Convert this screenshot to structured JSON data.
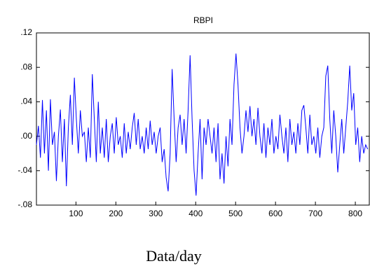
{
  "chart_data": {
    "type": "line",
    "title": "RBPI",
    "x_label": "Data/day",
    "x": [
      1,
      6,
      11,
      16,
      21,
      26,
      31,
      36,
      41,
      46,
      51,
      56,
      61,
      66,
      71,
      76,
      81,
      86,
      91,
      96,
      101,
      106,
      111,
      116,
      121,
      126,
      131,
      136,
      141,
      146,
      151,
      156,
      161,
      166,
      171,
      176,
      181,
      186,
      191,
      196,
      201,
      206,
      211,
      216,
      221,
      226,
      231,
      236,
      241,
      246,
      251,
      256,
      261,
      266,
      271,
      276,
      281,
      286,
      291,
      296,
      301,
      306,
      311,
      316,
      321,
      326,
      331,
      336,
      341,
      346,
      351,
      356,
      361,
      366,
      371,
      376,
      381,
      386,
      391,
      396,
      401,
      406,
      411,
      416,
      421,
      426,
      431,
      436,
      441,
      446,
      451,
      456,
      461,
      466,
      471,
      476,
      481,
      486,
      491,
      496,
      501,
      506,
      511,
      516,
      521,
      526,
      531,
      536,
      541,
      546,
      551,
      556,
      561,
      566,
      571,
      576,
      581,
      586,
      591,
      596,
      601,
      606,
      611,
      616,
      621,
      626,
      631,
      636,
      641,
      646,
      651,
      656,
      661,
      666,
      671,
      676,
      681,
      686,
      691,
      696,
      701,
      706,
      711,
      716,
      721,
      726,
      731,
      736,
      741,
      746,
      751,
      756,
      761,
      766,
      771,
      776,
      781,
      786,
      791,
      796,
      801,
      806,
      811,
      816,
      821,
      826,
      831
    ],
    "series": [
      {
        "name": "RBPI",
        "color": "#0000ff",
        "values": [
          -0.01,
          0.012,
          -0.025,
          0.042,
          -0.02,
          0.03,
          -0.04,
          0.043,
          -0.01,
          0.005,
          -0.052,
          0.0,
          0.031,
          -0.03,
          0.02,
          -0.058,
          0.01,
          0.048,
          -0.01,
          0.068,
          0.02,
          -0.02,
          0.03,
          0.0,
          0.005,
          -0.03,
          0.01,
          -0.025,
          0.072,
          0.02,
          -0.03,
          0.04,
          -0.02,
          0.01,
          -0.025,
          0.02,
          -0.03,
          0.0,
          0.015,
          -0.02,
          0.022,
          -0.01,
          0.0,
          -0.025,
          0.015,
          -0.02,
          0.005,
          -0.015,
          0.01,
          0.027,
          -0.01,
          0.02,
          -0.015,
          0.0,
          -0.02,
          0.01,
          -0.015,
          0.018,
          -0.01,
          0.005,
          -0.02,
          0.0,
          0.01,
          -0.03,
          -0.015,
          -0.048,
          -0.064,
          -0.02,
          0.078,
          0.02,
          -0.03,
          0.01,
          0.025,
          -0.01,
          0.02,
          -0.02,
          0.03,
          0.094,
          0.02,
          -0.04,
          -0.069,
          -0.02,
          0.02,
          -0.05,
          0.01,
          -0.01,
          0.02,
          0.0,
          -0.02,
          0.01,
          -0.03,
          0.015,
          -0.05,
          -0.02,
          -0.055,
          0.0,
          -0.035,
          0.02,
          -0.01,
          0.06,
          0.096,
          0.06,
          0.01,
          -0.02,
          0.0,
          0.03,
          0.005,
          0.035,
          0.0,
          0.02,
          -0.01,
          0.033,
          0.0,
          -0.02,
          0.015,
          -0.025,
          0.01,
          -0.01,
          0.02,
          -0.02,
          0.0,
          -0.015,
          0.025,
          0.0,
          -0.02,
          0.01,
          -0.03,
          0.02,
          -0.01,
          0.005,
          -0.02,
          0.015,
          -0.01,
          0.03,
          0.036,
          0.01,
          -0.02,
          0.025,
          -0.01,
          0.0,
          -0.02,
          0.01,
          -0.025,
          0.0,
          0.01,
          0.07,
          0.082,
          0.02,
          -0.02,
          0.03,
          0.0,
          -0.042,
          -0.01,
          0.02,
          -0.02,
          0.01,
          0.04,
          0.082,
          0.03,
          0.05,
          -0.01,
          0.01,
          -0.03,
          0.0,
          -0.02,
          -0.01,
          -0.015
        ]
      }
    ],
    "xlim": [
      1,
      835
    ],
    "xticks": [
      100,
      200,
      300,
      400,
      500,
      600,
      700,
      800
    ],
    "ylim": [
      -0.08,
      0.12
    ],
    "yticks": [
      {
        "value": -0.08,
        "label": "-.08"
      },
      {
        "value": -0.04,
        "label": "-.04"
      },
      {
        "value": 0,
        "label": ".00"
      },
      {
        "value": 0.04,
        "label": ".04"
      },
      {
        "value": 0.08,
        "label": ".08"
      },
      {
        "value": 0.12,
        "label": ".12"
      }
    ],
    "grid": false
  }
}
